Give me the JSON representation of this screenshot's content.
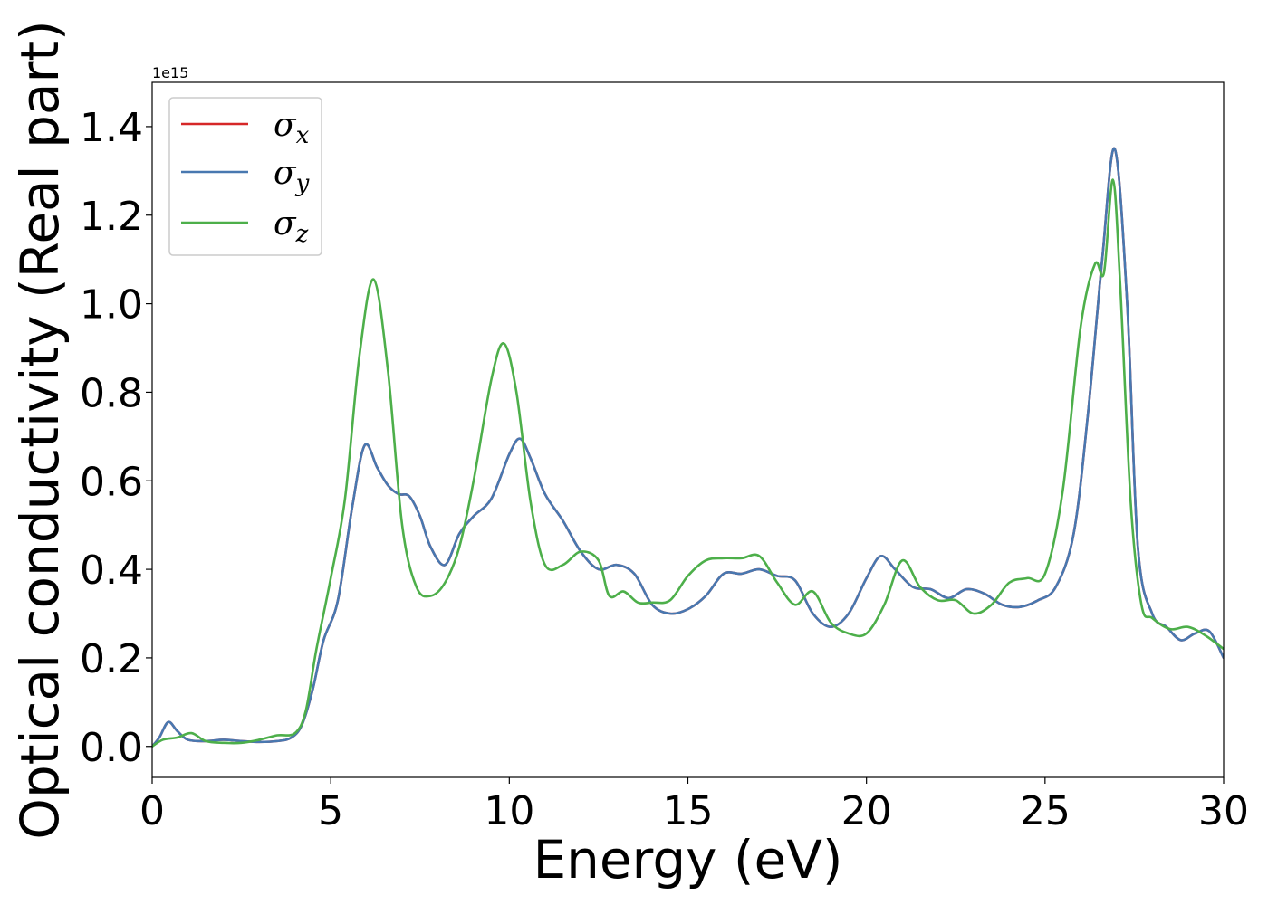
{
  "chart_data": {
    "type": "line",
    "xlabel": "Energy (eV)",
    "ylabel": "Optical conductivity (Real part)",
    "y_offset_text": "1e15",
    "xlim": [
      0,
      30
    ],
    "ylim": [
      -0.07,
      1.5
    ],
    "xticks": [
      0,
      5,
      10,
      15,
      20,
      25,
      30
    ],
    "xtick_labels": [
      "0",
      "5",
      "10",
      "15",
      "20",
      "25",
      "30"
    ],
    "yticks": [
      0.0,
      0.2,
      0.4,
      0.6,
      0.8,
      1.0,
      1.2,
      1.4
    ],
    "ytick_labels": [
      "0.0",
      "0.2",
      "0.4",
      "0.6",
      "0.8",
      "1.0",
      "1.2",
      "1.4"
    ],
    "grid": false,
    "legend_position": "top-left",
    "series": [
      {
        "name_main": "σ",
        "name_sub": "x",
        "color": "#d62728",
        "x": [
          0,
          0.2,
          0.45,
          0.7,
          1.0,
          1.5,
          2.0,
          2.5,
          3.0,
          3.5,
          3.9,
          4.2,
          4.5,
          4.8,
          5.2,
          5.6,
          5.95,
          6.3,
          6.6,
          6.9,
          7.2,
          7.5,
          7.8,
          8.2,
          8.6,
          9.0,
          9.5,
          10.0,
          10.3,
          10.6,
          11.0,
          11.5,
          12.0,
          12.5,
          13.0,
          13.5,
          14.0,
          14.5,
          15.0,
          15.5,
          16.0,
          16.5,
          17.0,
          17.5,
          18.0,
          18.5,
          19.0,
          19.5,
          20.0,
          20.4,
          20.8,
          21.3,
          21.8,
          22.3,
          22.8,
          23.3,
          23.8,
          24.3,
          24.8,
          25.3,
          25.8,
          26.2,
          26.6,
          26.95,
          27.3,
          27.6,
          28.0,
          28.4,
          28.8,
          29.2,
          29.6,
          30.0
        ],
        "y": [
          0.0,
          0.02,
          0.055,
          0.035,
          0.015,
          0.012,
          0.015,
          0.012,
          0.01,
          0.012,
          0.02,
          0.05,
          0.13,
          0.24,
          0.33,
          0.54,
          0.68,
          0.63,
          0.59,
          0.57,
          0.565,
          0.52,
          0.45,
          0.41,
          0.48,
          0.52,
          0.56,
          0.66,
          0.695,
          0.65,
          0.57,
          0.51,
          0.44,
          0.4,
          0.41,
          0.39,
          0.32,
          0.3,
          0.31,
          0.34,
          0.39,
          0.39,
          0.4,
          0.385,
          0.375,
          0.3,
          0.27,
          0.3,
          0.38,
          0.43,
          0.4,
          0.36,
          0.355,
          0.335,
          0.355,
          0.345,
          0.32,
          0.315,
          0.33,
          0.36,
          0.48,
          0.75,
          1.1,
          1.35,
          1.0,
          0.45,
          0.3,
          0.27,
          0.24,
          0.255,
          0.26,
          0.2
        ]
      },
      {
        "name_main": "σ",
        "name_sub": "y",
        "color": "#4878b0",
        "x": [
          0,
          0.2,
          0.45,
          0.7,
          1.0,
          1.5,
          2.0,
          2.5,
          3.0,
          3.5,
          3.9,
          4.2,
          4.5,
          4.8,
          5.2,
          5.6,
          5.95,
          6.3,
          6.6,
          6.9,
          7.2,
          7.5,
          7.8,
          8.2,
          8.6,
          9.0,
          9.5,
          10.0,
          10.3,
          10.6,
          11.0,
          11.5,
          12.0,
          12.5,
          13.0,
          13.5,
          14.0,
          14.5,
          15.0,
          15.5,
          16.0,
          16.5,
          17.0,
          17.5,
          18.0,
          18.5,
          19.0,
          19.5,
          20.0,
          20.4,
          20.8,
          21.3,
          21.8,
          22.3,
          22.8,
          23.3,
          23.8,
          24.3,
          24.8,
          25.3,
          25.8,
          26.2,
          26.6,
          26.95,
          27.3,
          27.6,
          28.0,
          28.4,
          28.8,
          29.2,
          29.6,
          30.0
        ],
        "y": [
          0.0,
          0.02,
          0.055,
          0.035,
          0.015,
          0.012,
          0.015,
          0.012,
          0.01,
          0.012,
          0.02,
          0.05,
          0.13,
          0.24,
          0.33,
          0.54,
          0.68,
          0.63,
          0.59,
          0.57,
          0.565,
          0.52,
          0.45,
          0.41,
          0.48,
          0.52,
          0.56,
          0.66,
          0.695,
          0.65,
          0.57,
          0.51,
          0.44,
          0.4,
          0.41,
          0.39,
          0.32,
          0.3,
          0.31,
          0.34,
          0.39,
          0.39,
          0.4,
          0.385,
          0.375,
          0.3,
          0.27,
          0.3,
          0.38,
          0.43,
          0.4,
          0.36,
          0.355,
          0.335,
          0.355,
          0.345,
          0.32,
          0.315,
          0.33,
          0.36,
          0.48,
          0.75,
          1.1,
          1.35,
          1.0,
          0.45,
          0.3,
          0.27,
          0.24,
          0.255,
          0.26,
          0.2
        ]
      },
      {
        "name_main": "σ",
        "name_sub": "z",
        "color": "#4daf4a",
        "x": [
          0,
          0.3,
          0.7,
          1.1,
          1.5,
          2.0,
          2.5,
          3.0,
          3.5,
          4.0,
          4.3,
          4.6,
          5.0,
          5.4,
          5.8,
          6.2,
          6.6,
          7.0,
          7.4,
          7.8,
          8.2,
          8.6,
          9.0,
          9.5,
          9.85,
          10.2,
          10.6,
          11.0,
          11.5,
          12.0,
          12.5,
          12.8,
          13.2,
          13.6,
          14.0,
          14.5,
          15.0,
          15.5,
          16.0,
          16.5,
          17.0,
          17.5,
          18.0,
          18.5,
          19.0,
          19.5,
          20.0,
          20.5,
          21.0,
          21.5,
          22.0,
          22.5,
          23.0,
          23.5,
          24.0,
          24.5,
          25.0,
          25.5,
          26.0,
          26.4,
          26.65,
          26.9,
          27.1,
          27.4,
          27.7,
          28.0,
          28.5,
          29.0,
          29.5,
          30.0
        ],
        "y": [
          0.0,
          0.015,
          0.02,
          0.03,
          0.012,
          0.008,
          0.008,
          0.015,
          0.025,
          0.03,
          0.08,
          0.22,
          0.38,
          0.56,
          0.88,
          1.055,
          0.85,
          0.5,
          0.36,
          0.34,
          0.37,
          0.45,
          0.6,
          0.83,
          0.91,
          0.8,
          0.55,
          0.41,
          0.41,
          0.44,
          0.42,
          0.34,
          0.35,
          0.325,
          0.325,
          0.33,
          0.385,
          0.42,
          0.425,
          0.425,
          0.43,
          0.37,
          0.32,
          0.35,
          0.28,
          0.255,
          0.255,
          0.32,
          0.42,
          0.36,
          0.33,
          0.33,
          0.3,
          0.32,
          0.37,
          0.38,
          0.39,
          0.58,
          0.95,
          1.09,
          1.07,
          1.28,
          1.05,
          0.55,
          0.32,
          0.29,
          0.265,
          0.27,
          0.25,
          0.22
        ]
      }
    ]
  }
}
